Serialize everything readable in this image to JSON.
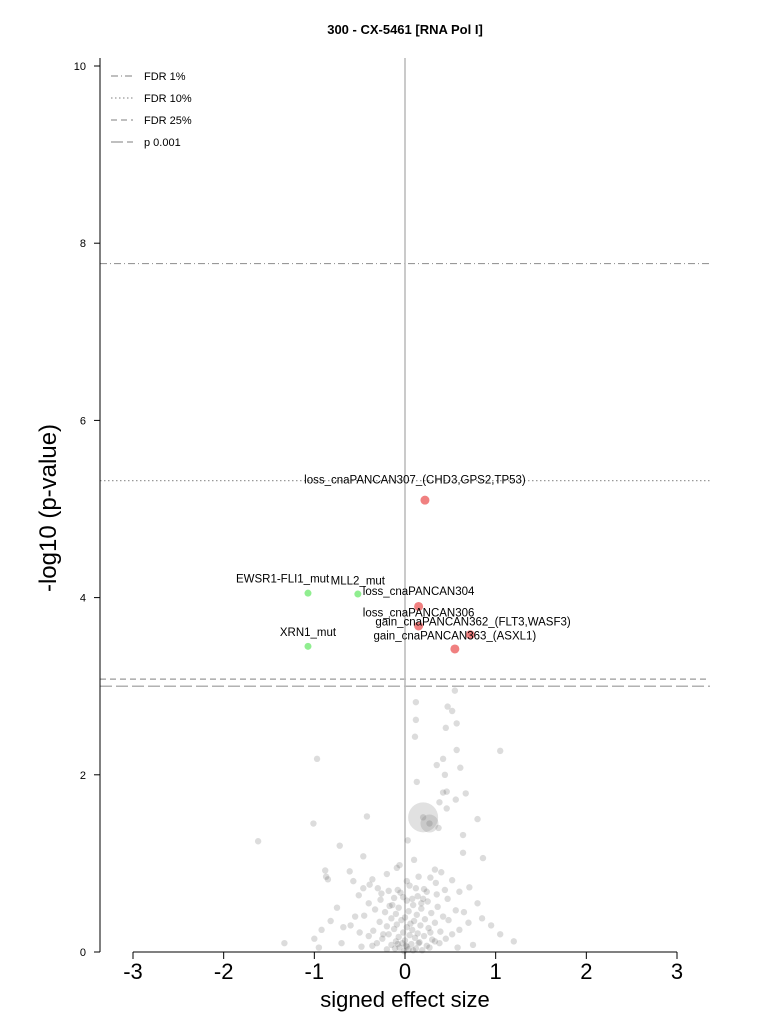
{
  "chart_data": {
    "type": "scatter",
    "title": "300 - CX-5461 [RNA Pol I]",
    "xlabel": "signed effect size",
    "ylabel": "-log10 (p-value)",
    "xlim": [
      -3.3,
      3.35
    ],
    "ylim": [
      0,
      10.1
    ],
    "x_ticks": [
      -3,
      -2,
      -1,
      0,
      1,
      2,
      3
    ],
    "y_ticks": [
      0,
      2,
      4,
      6,
      8,
      10
    ],
    "grid": false,
    "zero_line": true,
    "legend_position": "top-left",
    "thresholds": [
      {
        "name": "FDR 1%",
        "y": 7.77,
        "style": "dashdot"
      },
      {
        "name": "FDR 10%",
        "y": 5.32,
        "style": "dotted"
      },
      {
        "name": "FDR 25%",
        "y": 3.08,
        "style": "dashed"
      },
      {
        "name": "p 0.001",
        "y": 3.0,
        "style": "longdash"
      }
    ],
    "highlighted": [
      {
        "label": "loss_cnaPANCAN307_(CHD3,GPS2,TP53)",
        "x": 0.22,
        "y": 5.1,
        "color": "#f08080"
      },
      {
        "label": "EWSR1-FLI1_mut",
        "x": -1.07,
        "y": 4.05,
        "color": "#90ee90"
      },
      {
        "label": "MLL2_mut",
        "x": -0.52,
        "y": 4.04,
        "color": "#90ee90"
      },
      {
        "label": "loss_cnaPANCAN304",
        "x": 0.15,
        "y": 3.9,
        "color": "#f08080"
      },
      {
        "label": "loss_cnaPANCAN306",
        "x": 0.15,
        "y": 3.68,
        "color": "#f08080"
      },
      {
        "label": "gain_cnaPANCAN362_(FLT3,WASF3)",
        "x": 0.72,
        "y": 3.58,
        "color": "#f08080"
      },
      {
        "label": "gain_cnaPANCAN363_(ASXL1)",
        "x": 0.55,
        "y": 3.42,
        "color": "#f08080"
      },
      {
        "label": "XRN1_mut",
        "x": -1.07,
        "y": 3.45,
        "color": "#90ee90"
      }
    ],
    "background_points": [
      [
        0.2,
        1.52
      ],
      [
        0.27,
        1.45
      ],
      [
        0.03,
        1.26
      ],
      [
        0.55,
        2.95
      ],
      [
        0.12,
        2.82
      ],
      [
        0.47,
        2.77
      ],
      [
        0.52,
        2.72
      ],
      [
        0.12,
        2.62
      ],
      [
        0.57,
        2.58
      ],
      [
        0.45,
        2.53
      ],
      [
        0.11,
        2.43
      ],
      [
        1.05,
        2.27
      ],
      [
        0.57,
        2.28
      ],
      [
        0.42,
        2.18
      ],
      [
        0.35,
        2.11
      ],
      [
        -0.97,
        2.18
      ],
      [
        0.61,
        2.08
      ],
      [
        0.44,
        2.0
      ],
      [
        0.13,
        1.92
      ],
      [
        0.42,
        1.8
      ],
      [
        0.46,
        1.81
      ],
      [
        0.67,
        1.79
      ],
      [
        0.56,
        1.72
      ],
      [
        0.38,
        1.69
      ],
      [
        0.46,
        1.62
      ],
      [
        0.8,
        1.5
      ],
      [
        0.37,
        1.4
      ],
      [
        0.64,
        1.32
      ],
      [
        -0.42,
        1.53
      ],
      [
        -1.01,
        1.45
      ],
      [
        -0.72,
        1.2
      ],
      [
        -1.62,
        1.25
      ],
      [
        -0.46,
        1.08
      ],
      [
        0.64,
        1.12
      ],
      [
        0.86,
        1.06
      ],
      [
        0.1,
        1.04
      ],
      [
        -0.06,
        0.98
      ],
      [
        0.33,
        0.93
      ],
      [
        -0.09,
        0.95
      ],
      [
        0.4,
        0.9
      ],
      [
        -0.88,
        0.92
      ],
      [
        -0.87,
        0.85
      ],
      [
        -0.61,
        0.91
      ],
      [
        -0.2,
        0.88
      ],
      [
        0.15,
        0.85
      ],
      [
        0.28,
        0.84
      ],
      [
        -0.57,
        0.8
      ],
      [
        -0.85,
        0.82
      ],
      [
        0.52,
        0.81
      ],
      [
        -0.39,
        0.76
      ],
      [
        0.05,
        0.75
      ],
      [
        0.71,
        0.73
      ],
      [
        -0.3,
        0.72
      ],
      [
        0.21,
        0.71
      ],
      [
        -0.18,
        0.69
      ],
      [
        0.6,
        0.68
      ],
      [
        -0.05,
        0.67
      ],
      [
        0.35,
        0.65
      ],
      [
        -0.51,
        0.64
      ],
      [
        0.14,
        0.63
      ],
      [
        -0.12,
        0.61
      ],
      [
        0.47,
        0.6
      ],
      [
        -0.27,
        0.59
      ],
      [
        0.02,
        0.58
      ],
      [
        0.25,
        0.57
      ],
      [
        -0.4,
        0.55
      ],
      [
        0.8,
        0.55
      ],
      [
        0.09,
        0.53
      ],
      [
        -0.17,
        0.52
      ],
      [
        0.36,
        0.51
      ],
      [
        -0.07,
        0.5
      ],
      [
        0.18,
        0.49
      ],
      [
        -0.33,
        0.48
      ],
      [
        0.56,
        0.47
      ],
      [
        0.04,
        0.46
      ],
      [
        -0.22,
        0.45
      ],
      [
        0.29,
        0.44
      ],
      [
        -0.1,
        0.43
      ],
      [
        0.13,
        0.42
      ],
      [
        -0.45,
        0.41
      ],
      [
        0.42,
        0.4
      ],
      [
        0.0,
        0.39
      ],
      [
        -0.15,
        0.38
      ],
      [
        0.22,
        0.37
      ],
      [
        -0.04,
        0.36
      ],
      [
        0.1,
        0.35
      ],
      [
        -0.28,
        0.34
      ],
      [
        0.33,
        0.33
      ],
      [
        0.06,
        0.32
      ],
      [
        -0.09,
        0.31
      ],
      [
        0.17,
        0.3
      ],
      [
        -0.2,
        0.29
      ],
      [
        0.02,
        0.28
      ],
      [
        0.26,
        0.27
      ],
      [
        -0.12,
        0.26
      ],
      [
        0.08,
        0.25
      ],
      [
        -0.35,
        0.24
      ],
      [
        0.39,
        0.23
      ],
      [
        -0.02,
        0.22
      ],
      [
        0.14,
        0.21
      ],
      [
        -0.18,
        0.2
      ],
      [
        0.05,
        0.19
      ],
      [
        0.21,
        0.18
      ],
      [
        -0.07,
        0.17
      ],
      [
        0.11,
        0.16
      ],
      [
        -0.25,
        0.15
      ],
      [
        0.3,
        0.14
      ],
      [
        0.0,
        0.13
      ],
      [
        -0.1,
        0.12
      ],
      [
        0.16,
        0.11
      ],
      [
        -0.03,
        0.1
      ],
      [
        0.07,
        0.09
      ],
      [
        -0.15,
        0.08
      ],
      [
        0.24,
        0.07
      ],
      [
        0.02,
        0.06
      ],
      [
        -0.06,
        0.05
      ],
      [
        0.12,
        0.04
      ],
      [
        -0.2,
        0.03
      ],
      [
        0.09,
        0.02
      ],
      [
        -0.01,
        0.01
      ],
      [
        0.19,
        0.02
      ],
      [
        0.04,
        0.03
      ],
      [
        -0.11,
        0.04
      ],
      [
        0.27,
        0.05
      ],
      [
        0.01,
        0.07
      ],
      [
        -0.08,
        0.09
      ],
      [
        0.15,
        0.1
      ],
      [
        0.33,
        0.12
      ],
      [
        -0.31,
        0.1
      ],
      [
        0.45,
        0.15
      ],
      [
        -0.4,
        0.18
      ],
      [
        0.52,
        0.2
      ],
      [
        -0.5,
        0.22
      ],
      [
        0.6,
        0.25
      ],
      [
        -0.6,
        0.3
      ],
      [
        0.7,
        0.33
      ],
      [
        -0.68,
        0.28
      ],
      [
        0.48,
        0.36
      ],
      [
        -0.55,
        0.4
      ],
      [
        0.65,
        0.45
      ],
      [
        -0.75,
        0.5
      ],
      [
        0.85,
        0.38
      ],
      [
        -0.82,
        0.35
      ],
      [
        0.95,
        0.3
      ],
      [
        -0.92,
        0.25
      ],
      [
        1.05,
        0.2
      ],
      [
        -1.0,
        0.15
      ],
      [
        -1.33,
        0.1
      ],
      [
        1.2,
        0.12
      ],
      [
        -0.95,
        0.05
      ],
      [
        0.75,
        0.08
      ],
      [
        -0.7,
        0.1
      ],
      [
        0.58,
        0.05
      ],
      [
        -0.48,
        0.06
      ],
      [
        0.38,
        0.1
      ],
      [
        -0.36,
        0.07
      ],
      [
        0.28,
        0.22
      ],
      [
        -0.24,
        0.2
      ],
      [
        0.18,
        0.55
      ],
      [
        -0.14,
        0.53
      ],
      [
        0.08,
        0.6
      ],
      [
        -0.02,
        0.62
      ],
      [
        0.24,
        0.68
      ],
      [
        -0.26,
        0.66
      ],
      [
        0.44,
        0.7
      ],
      [
        -0.46,
        0.72
      ],
      [
        0.02,
        0.8
      ],
      [
        0.34,
        0.78
      ],
      [
        -0.36,
        0.82
      ],
      [
        0.12,
        0.72
      ],
      [
        -0.08,
        0.7
      ],
      [
        0.2,
        0.6
      ]
    ],
    "large_points": [
      {
        "x": 0.2,
        "y": 1.52,
        "size": "large"
      },
      {
        "x": 0.27,
        "y": 1.45,
        "size": "medium"
      }
    ],
    "legend": [
      "FDR 1%",
      "FDR 10%",
      "FDR 25%",
      "p 0.001"
    ]
  }
}
